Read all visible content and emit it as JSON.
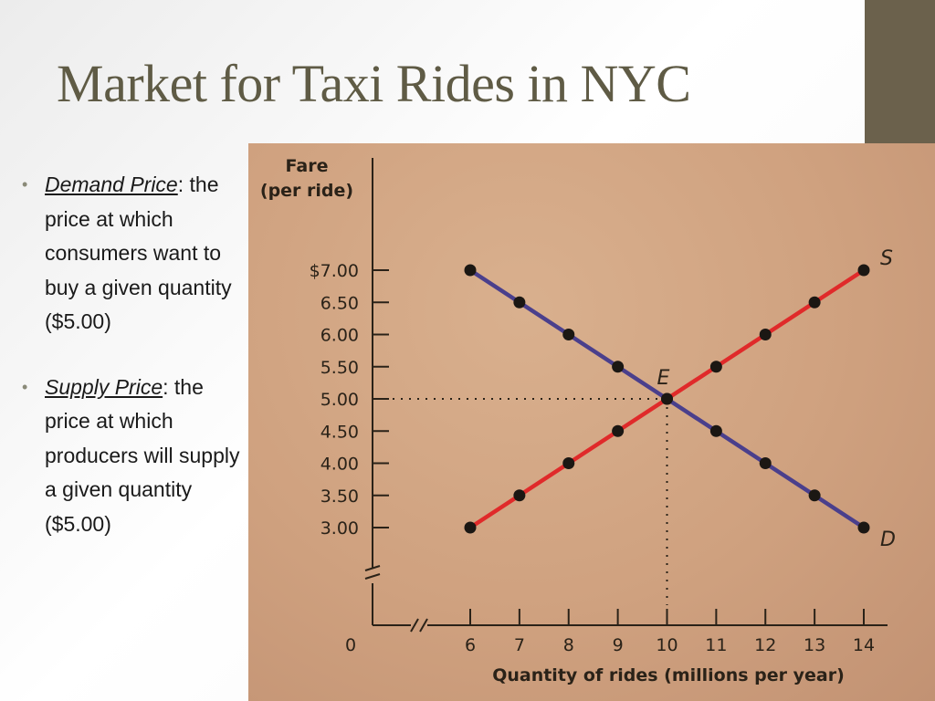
{
  "slide": {
    "title": "Market for Taxi Rides in NYC",
    "accent_color": "#6b614c",
    "bullets": [
      {
        "term": "Demand Price",
        "rest": ": the price at which consumers want to buy a given quantity ($5.00)"
      },
      {
        "term": "Supply Price",
        "rest": ": the price at which producers will supply a given quantity ($5.00)"
      }
    ]
  },
  "chart_data": {
    "type": "line",
    "ylabel_line1": "Fare",
    "ylabel_line2": "(per ride)",
    "xlabel": "Quantity of rides (millions per year)",
    "x_ticks": [
      6,
      7,
      8,
      9,
      10,
      11,
      12,
      13,
      14
    ],
    "x_tick_labels": [
      "6",
      "7",
      "8",
      "9",
      "10",
      "11",
      "12",
      "13",
      "14"
    ],
    "y_ticks": [
      3.0,
      3.5,
      4.0,
      4.5,
      5.0,
      5.5,
      6.0,
      6.5,
      7.0
    ],
    "y_tick_labels": [
      "3.00",
      "3.50",
      "4.00",
      "4.50",
      "5.00",
      "5.50",
      "6.00",
      "6.50",
      "$7.00"
    ],
    "origin_label": "0",
    "axis_breaks": true,
    "xlim": [
      6,
      14
    ],
    "ylim": [
      3.0,
      7.0
    ],
    "series": [
      {
        "name": "S",
        "color": "#e02a2a",
        "x": [
          6,
          7,
          8,
          9,
          10,
          11,
          12,
          13,
          14
        ],
        "y": [
          3.0,
          3.5,
          4.0,
          4.5,
          5.0,
          5.5,
          6.0,
          6.5,
          7.0
        ]
      },
      {
        "name": "D",
        "color": "#4a3f8c",
        "x": [
          6,
          7,
          8,
          9,
          10,
          11,
          12,
          13,
          14
        ],
        "y": [
          7.0,
          6.5,
          6.0,
          5.5,
          5.0,
          4.5,
          4.0,
          3.5,
          3.0
        ]
      }
    ],
    "equilibrium": {
      "label": "E",
      "x": 10,
      "y": 5.0
    },
    "guides": "dotted lines from equilibrium to both axes"
  }
}
